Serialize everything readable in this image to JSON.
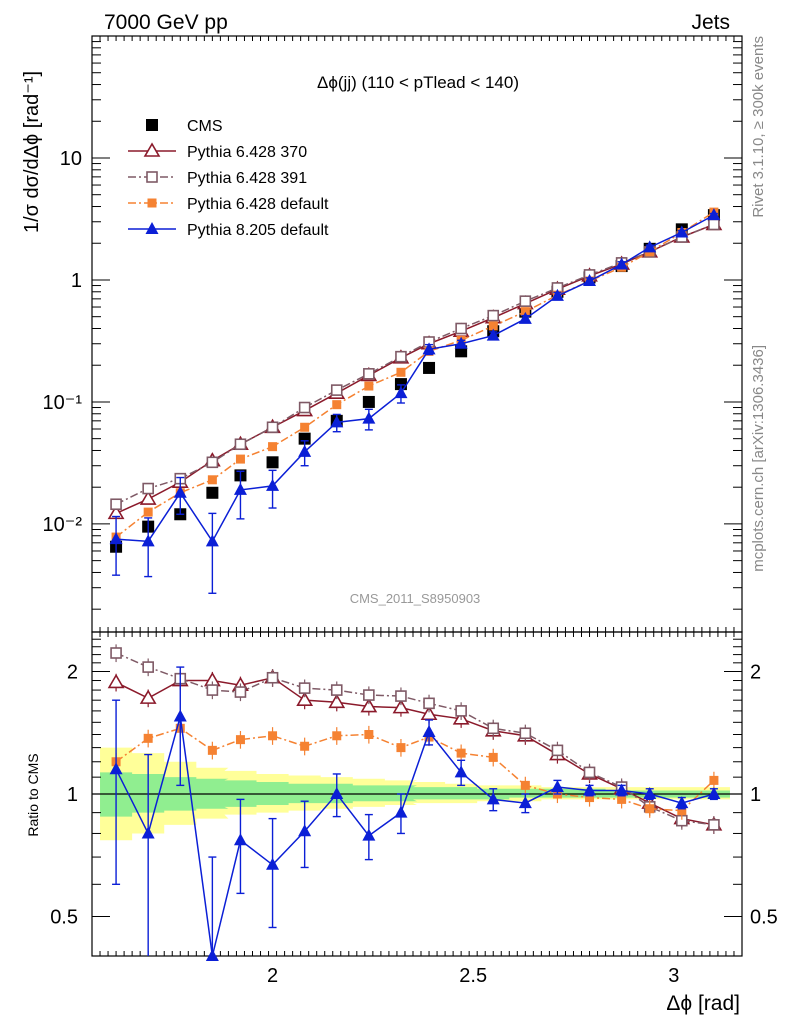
{
  "header": {
    "energy_label": "7000 GeV pp",
    "process_label": "Jets",
    "plot_title": "Δϕ(jj) (110 < pTlead <  140)",
    "side_label_top": "Rivet 3.1.10, ≥ 300k events",
    "side_label_bottom": "mcplots.cern.ch [arXiv:1306.3436]",
    "analysis_label": "CMS_2011_S8950903"
  },
  "axes": {
    "ylabel_main": "1/σ dσ/dΔϕ [rad⁻¹]",
    "ylabel_ratio": "Ratio to CMS",
    "xlabel": "Δϕ [rad]",
    "main_y_ticks": [
      "10⁻²",
      "10⁻¹",
      "1",
      "10"
    ],
    "ratio_y_ticks": [
      "0.5",
      "1",
      "2"
    ],
    "x_ticks": [
      "2",
      "2.5",
      "3"
    ]
  },
  "colors": {
    "cms": "#000000",
    "p6_370": "#8b1a2b",
    "p6_391": "#7f5a66",
    "p6_default": "#f58232",
    "p8_default": "#0b1fd6",
    "band_inner": "#90ee90",
    "band_outer": "#ffff99"
  },
  "chart_data": {
    "type": "line",
    "title": "Δϕ(jj) (110 < pTlead <  140)",
    "xlabel": "Δϕ [rad]",
    "ylabel": "1/σ dσ/dΔϕ [rad^-1]",
    "yscale": "log",
    "xlim": [
      1.55,
      3.17
    ],
    "ylim": [
      0.0013,
      100
    ],
    "ratio_ylim": [
      0.4,
      2.5
    ],
    "legend_position": "top-left",
    "x": [
      1.61,
      1.69,
      1.77,
      1.85,
      1.92,
      2.0,
      2.08,
      2.16,
      2.24,
      2.32,
      2.39,
      2.47,
      2.55,
      2.63,
      2.71,
      2.79,
      2.87,
      2.94,
      3.02,
      3.1
    ],
    "series": [
      {
        "name": "CMS",
        "key": "cms",
        "marker": "square-filled",
        "values": [
          0.0065,
          0.0095,
          0.012,
          0.018,
          0.025,
          0.032,
          0.05,
          0.07,
          0.1,
          0.14,
          0.19,
          0.26,
          0.38,
          0.55,
          0.8,
          1.05,
          1.3,
          1.8,
          2.6,
          3.4
        ],
        "errors": [
          0.0005,
          0.0005,
          0.0006,
          0.0007,
          0.001,
          0.0012,
          0.002,
          0.003,
          0.004,
          0.006,
          0.008,
          0.01,
          0.015,
          0.02,
          0.03,
          0.04,
          0.05,
          0.07,
          0.1,
          0.13
        ]
      },
      {
        "name": "Pythia 6.428 370",
        "key": "p6_370",
        "marker": "triangle-open",
        "line": "solid",
        "values": [
          0.0122,
          0.016,
          0.022,
          0.033,
          0.045,
          0.062,
          0.085,
          0.118,
          0.165,
          0.23,
          0.3,
          0.38,
          0.49,
          0.64,
          0.84,
          1.08,
          1.35,
          1.7,
          2.25,
          2.85
        ],
        "ratio": [
          1.88,
          1.72,
          1.9,
          1.9,
          1.85,
          1.93,
          1.7,
          1.68,
          1.64,
          1.63,
          1.57,
          1.53,
          1.43,
          1.39,
          1.25,
          1.12,
          1.03,
          0.95,
          0.87,
          0.84
        ]
      },
      {
        "name": "Pythia 6.428 391",
        "key": "p6_391",
        "marker": "square-open",
        "line": "dash-dot",
        "values": [
          0.0145,
          0.0195,
          0.0235,
          0.032,
          0.045,
          0.062,
          0.09,
          0.125,
          0.17,
          0.235,
          0.31,
          0.4,
          0.51,
          0.67,
          0.86,
          1.1,
          1.38,
          1.7,
          2.25,
          2.85
        ],
        "ratio": [
          2.22,
          2.05,
          1.92,
          1.8,
          1.78,
          1.93,
          1.82,
          1.8,
          1.75,
          1.74,
          1.67,
          1.6,
          1.45,
          1.41,
          1.28,
          1.13,
          1.04,
          0.93,
          0.86,
          0.84
        ]
      },
      {
        "name": "Pythia 6.428 default",
        "key": "p6_default",
        "marker": "square-filled-small",
        "line": "dash-dot",
        "values": [
          0.0078,
          0.0125,
          0.018,
          0.023,
          0.034,
          0.043,
          0.062,
          0.095,
          0.135,
          0.175,
          0.26,
          0.32,
          0.42,
          0.55,
          0.75,
          0.98,
          1.27,
          1.7,
          2.45,
          3.6
        ],
        "ratio": [
          1.2,
          1.37,
          1.45,
          1.28,
          1.36,
          1.39,
          1.31,
          1.39,
          1.4,
          1.3,
          1.38,
          1.26,
          1.23,
          1.05,
          1.0,
          0.98,
          0.97,
          0.92,
          0.91,
          1.08
        ]
      },
      {
        "name": "Pythia 8.205 default",
        "key": "p8_default",
        "marker": "triangle-filled",
        "line": "solid",
        "values": [
          0.0075,
          0.0072,
          0.018,
          0.0072,
          0.019,
          0.0205,
          0.039,
          0.068,
          0.073,
          0.118,
          0.27,
          0.3,
          0.35,
          0.48,
          0.74,
          0.98,
          1.34,
          1.85,
          2.45,
          3.4
        ],
        "errors_lo": [
          0.0037,
          0.0035,
          0.006,
          0.0045,
          0.008,
          0.007,
          0.009,
          0.011,
          0.014,
          0.02,
          0.025,
          0.02,
          0.025,
          0.03,
          0.05,
          0.06,
          0.07,
          0.08,
          0.09,
          0.1
        ],
        "errors_hi": [
          0.004,
          0.004,
          0.006,
          0.005,
          0.008,
          0.007,
          0.009,
          0.011,
          0.014,
          0.02,
          0.025,
          0.02,
          0.025,
          0.03,
          0.05,
          0.06,
          0.07,
          0.08,
          0.09,
          0.1
        ],
        "ratio": [
          1.15,
          0.8,
          1.55,
          0.4,
          0.77,
          0.67,
          0.81,
          1.0,
          0.79,
          0.9,
          1.42,
          1.13,
          0.97,
          0.95,
          1.04,
          1.02,
          1.02,
          1.0,
          0.95,
          1.0
        ],
        "ratio_err_lo": [
          0.55,
          0.4,
          0.5,
          0.3,
          0.2,
          0.2,
          0.15,
          0.12,
          0.1,
          0.1,
          0.1,
          0.08,
          0.06,
          0.05,
          0.04,
          0.03,
          0.03,
          0.03,
          0.03,
          0.03
        ],
        "ratio_err_hi": [
          0.55,
          0.45,
          0.5,
          0.3,
          0.2,
          0.2,
          0.15,
          0.12,
          0.1,
          0.1,
          0.1,
          0.08,
          0.06,
          0.05,
          0.04,
          0.03,
          0.03,
          0.03,
          0.03,
          0.03
        ]
      }
    ],
    "ratio_band": {
      "inner_lo": [
        0.88,
        0.9,
        0.91,
        0.92,
        0.93,
        0.94,
        0.95,
        0.95,
        0.96,
        0.96,
        0.97,
        0.97,
        0.97,
        0.98,
        0.98,
        0.98,
        0.98,
        0.98,
        0.98,
        0.98
      ],
      "inner_hi": [
        1.13,
        1.12,
        1.1,
        1.09,
        1.08,
        1.07,
        1.06,
        1.06,
        1.05,
        1.05,
        1.04,
        1.04,
        1.03,
        1.03,
        1.03,
        1.03,
        1.02,
        1.02,
        1.02,
        1.02
      ],
      "outer_lo": [
        0.77,
        0.8,
        0.84,
        0.87,
        0.89,
        0.9,
        0.91,
        0.92,
        0.93,
        0.94,
        0.95,
        0.95,
        0.96,
        0.96,
        0.97,
        0.97,
        0.97,
        0.97,
        0.97,
        0.97
      ],
      "outer_hi": [
        1.3,
        1.26,
        1.2,
        1.16,
        1.14,
        1.12,
        1.11,
        1.1,
        1.09,
        1.08,
        1.07,
        1.06,
        1.05,
        1.05,
        1.04,
        1.04,
        1.04,
        1.04,
        1.04,
        1.04
      ]
    }
  }
}
